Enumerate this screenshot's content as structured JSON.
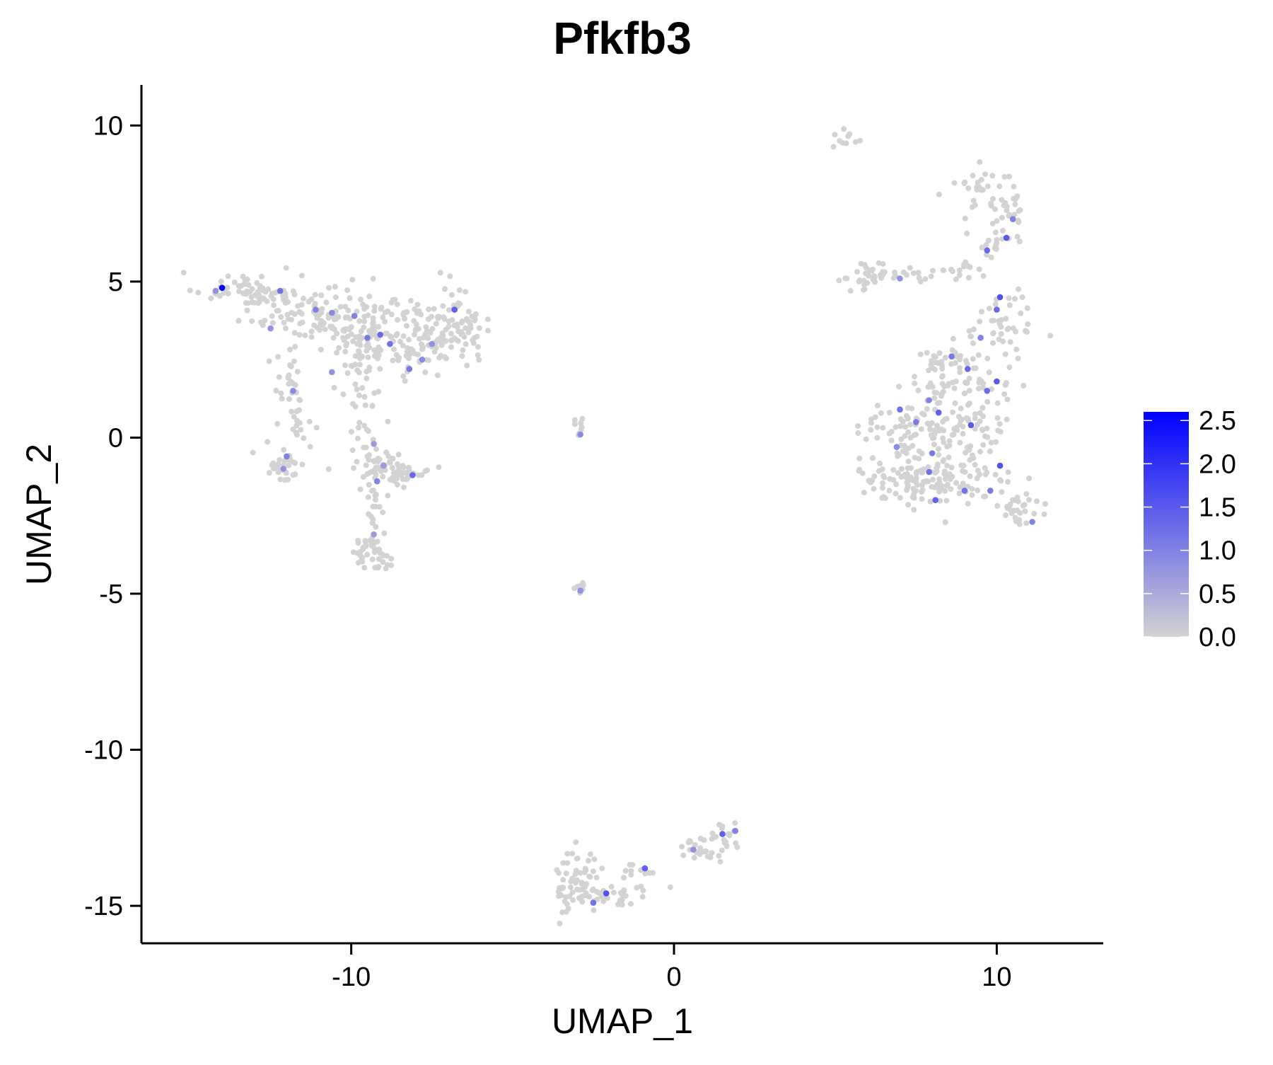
{
  "chart_data": {
    "type": "scatter",
    "title": "Pfkfb3",
    "xlabel": "UMAP_1",
    "ylabel": "UMAP_2",
    "xlim": [
      -16.5,
      13.3
    ],
    "ylim": [
      -16.2,
      11.3
    ],
    "x_ticks": [
      -10,
      0,
      10
    ],
    "x_tick_labels": [
      "-10",
      "0",
      "10"
    ],
    "y_ticks": [
      10,
      5,
      0,
      -5,
      -10,
      -15
    ],
    "y_tick_labels": [
      "10",
      "5",
      "0",
      "-5",
      "-10",
      "-15"
    ],
    "grid": false,
    "legend_position": "right",
    "color_scale": {
      "low_color": "#d3d3d3",
      "high_color": "#0000ff",
      "min": 0,
      "max": 2.6,
      "ticks": [
        0,
        0.5,
        1.0,
        1.5,
        2.0,
        2.5
      ],
      "tick_labels": [
        "0.0",
        "0.5",
        "1.0",
        "1.5",
        "2.0",
        "2.5"
      ]
    },
    "series": [
      {
        "values": [
          {
            "x": -14.0,
            "y": 4.8,
            "v": 2.6
          },
          {
            "x": -14.2,
            "y": 4.7,
            "v": 0.8
          },
          {
            "x": -12.2,
            "y": 4.7,
            "v": 1.2
          },
          {
            "x": -12.5,
            "y": 3.5,
            "v": 0.8
          },
          {
            "x": -11.1,
            "y": 4.1,
            "v": 1.0
          },
          {
            "x": -10.6,
            "y": 4.0,
            "v": 0.9
          },
          {
            "x": -9.9,
            "y": 3.9,
            "v": 1.0
          },
          {
            "x": -9.5,
            "y": 3.2,
            "v": 1.1
          },
          {
            "x": -9.1,
            "y": 3.3,
            "v": 1.3
          },
          {
            "x": -8.8,
            "y": 3.0,
            "v": 1.2
          },
          {
            "x": -8.2,
            "y": 2.2,
            "v": 1.1
          },
          {
            "x": -7.8,
            "y": 2.5,
            "v": 0.9
          },
          {
            "x": -6.8,
            "y": 4.1,
            "v": 1.4
          },
          {
            "x": -7.5,
            "y": 3.0,
            "v": 0.8
          },
          {
            "x": -11.8,
            "y": 1.5,
            "v": 0.9
          },
          {
            "x": -10.6,
            "y": 2.1,
            "v": 0.8
          },
          {
            "x": -12.0,
            "y": -0.6,
            "v": 1.0
          },
          {
            "x": -12.1,
            "y": -1.0,
            "v": 0.8
          },
          {
            "x": -9.3,
            "y": -0.2,
            "v": 0.7
          },
          {
            "x": -9.2,
            "y": -1.4,
            "v": 1.0
          },
          {
            "x": -8.1,
            "y": -1.2,
            "v": 1.3
          },
          {
            "x": -9.0,
            "y": -0.9,
            "v": 0.7
          },
          {
            "x": -9.3,
            "y": -3.1,
            "v": 0.7
          },
          {
            "x": -2.9,
            "y": 0.1,
            "v": 0.9
          },
          {
            "x": -2.9,
            "y": -4.9,
            "v": 0.8
          },
          {
            "x": -2.1,
            "y": -14.6,
            "v": 1.6
          },
          {
            "x": -2.5,
            "y": -14.9,
            "v": 1.2
          },
          {
            "x": -0.9,
            "y": -13.8,
            "v": 1.4
          },
          {
            "x": 1.5,
            "y": -12.7,
            "v": 1.4
          },
          {
            "x": 1.9,
            "y": -12.6,
            "v": 1.0
          },
          {
            "x": 0.6,
            "y": -13.2,
            "v": 0.8
          },
          {
            "x": 7.0,
            "y": 5.1,
            "v": 0.8
          },
          {
            "x": 9.7,
            "y": 6.0,
            "v": 1.3
          },
          {
            "x": 10.3,
            "y": 6.4,
            "v": 1.5
          },
          {
            "x": 10.5,
            "y": 7.0,
            "v": 1.0
          },
          {
            "x": 10.1,
            "y": 4.5,
            "v": 1.6
          },
          {
            "x": 10.0,
            "y": 4.1,
            "v": 1.3
          },
          {
            "x": 9.5,
            "y": 3.2,
            "v": 1.0
          },
          {
            "x": 8.6,
            "y": 2.6,
            "v": 1.1
          },
          {
            "x": 9.1,
            "y": 2.2,
            "v": 1.3
          },
          {
            "x": 10.0,
            "y": 1.8,
            "v": 1.5
          },
          {
            "x": 9.7,
            "y": 1.5,
            "v": 1.3
          },
          {
            "x": 7.9,
            "y": 1.2,
            "v": 1.0
          },
          {
            "x": 7.0,
            "y": 0.9,
            "v": 1.2
          },
          {
            "x": 6.9,
            "y": -0.3,
            "v": 0.9
          },
          {
            "x": 7.5,
            "y": 0.5,
            "v": 1.1
          },
          {
            "x": 8.2,
            "y": 0.8,
            "v": 1.4
          },
          {
            "x": 9.2,
            "y": 0.4,
            "v": 1.5
          },
          {
            "x": 8.0,
            "y": -0.5,
            "v": 1.1
          },
          {
            "x": 7.9,
            "y": -1.1,
            "v": 1.2
          },
          {
            "x": 9.0,
            "y": -1.7,
            "v": 1.2
          },
          {
            "x": 8.1,
            "y": -2.0,
            "v": 1.4
          },
          {
            "x": 10.1,
            "y": -0.9,
            "v": 1.6
          },
          {
            "x": 9.8,
            "y": -1.7,
            "v": 1.1
          },
          {
            "x": 11.1,
            "y": -2.7,
            "v": 1.0
          }
        ]
      }
    ]
  }
}
